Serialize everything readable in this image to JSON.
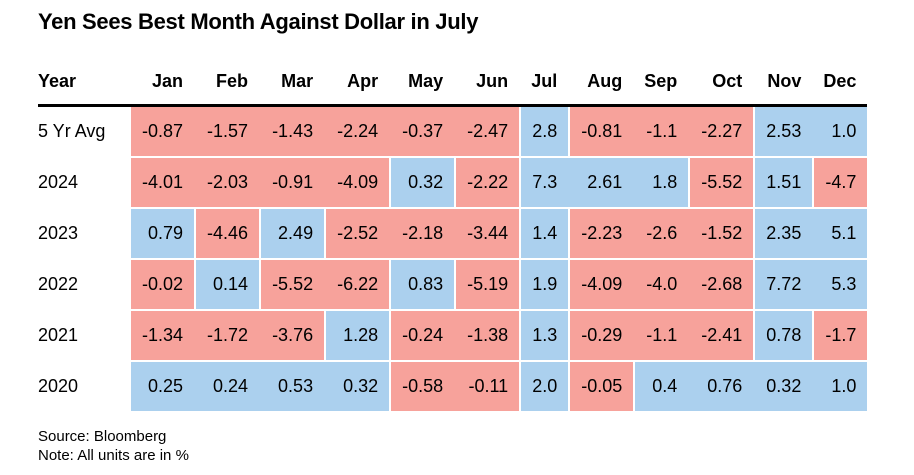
{
  "title": "Yen Sees Best Month Against Dollar in July",
  "colors": {
    "positive_cell": "#ABD0EE",
    "negative_cell": "#F7A29B",
    "header_rule": "#000000",
    "text": "#000000",
    "background": "#FFFFFF"
  },
  "table": {
    "year_column_header": "Year"
  },
  "footer": {
    "source": "Source: Bloomberg",
    "note": "Note: All units are in %"
  },
  "chart_data": {
    "type": "heatmap",
    "title": "Yen Sees Best Month Against Dollar in July",
    "columns": [
      "Jan",
      "Feb",
      "Mar",
      "Apr",
      "May",
      "Jun",
      "Jul",
      "Aug",
      "Sep",
      "Oct",
      "Nov",
      "Dec"
    ],
    "column_decimals": [
      2,
      2,
      2,
      2,
      2,
      2,
      1,
      2,
      1,
      2,
      2,
      1
    ],
    "rows": [
      {
        "label": "5 Yr Avg",
        "values": [
          -0.87,
          -1.57,
          -1.43,
          -2.24,
          -0.37,
          -2.47,
          2.8,
          -0.81,
          -1.1,
          -2.27,
          2.53,
          1.0
        ]
      },
      {
        "label": "2024",
        "values": [
          -4.01,
          -2.03,
          -0.91,
          -4.09,
          0.32,
          -2.22,
          7.3,
          2.61,
          1.8,
          -5.52,
          1.51,
          -4.7
        ]
      },
      {
        "label": "2023",
        "values": [
          0.79,
          -4.46,
          2.49,
          -2.52,
          -2.18,
          -3.44,
          1.4,
          -2.23,
          -2.6,
          -1.52,
          2.35,
          5.1
        ]
      },
      {
        "label": "2022",
        "values": [
          -0.02,
          0.14,
          -5.52,
          -6.22,
          0.83,
          -5.19,
          1.9,
          -4.09,
          -4.0,
          -2.68,
          7.72,
          5.3
        ]
      },
      {
        "label": "2021",
        "values": [
          -1.34,
          -1.72,
          -3.76,
          1.28,
          -0.24,
          -1.38,
          1.3,
          -0.29,
          -1.1,
          -2.41,
          0.78,
          -1.7
        ]
      },
      {
        "label": "2020",
        "values": [
          0.25,
          0.24,
          0.53,
          0.32,
          -0.58,
          -0.11,
          2.0,
          -0.05,
          0.4,
          0.76,
          0.32,
          1.0
        ]
      }
    ],
    "units": "%",
    "source": "Bloomberg",
    "legend": "negative values shaded pink, positive values shaded blue",
    "positive_color": "#ABD0EE",
    "negative_color": "#F7A29B"
  }
}
